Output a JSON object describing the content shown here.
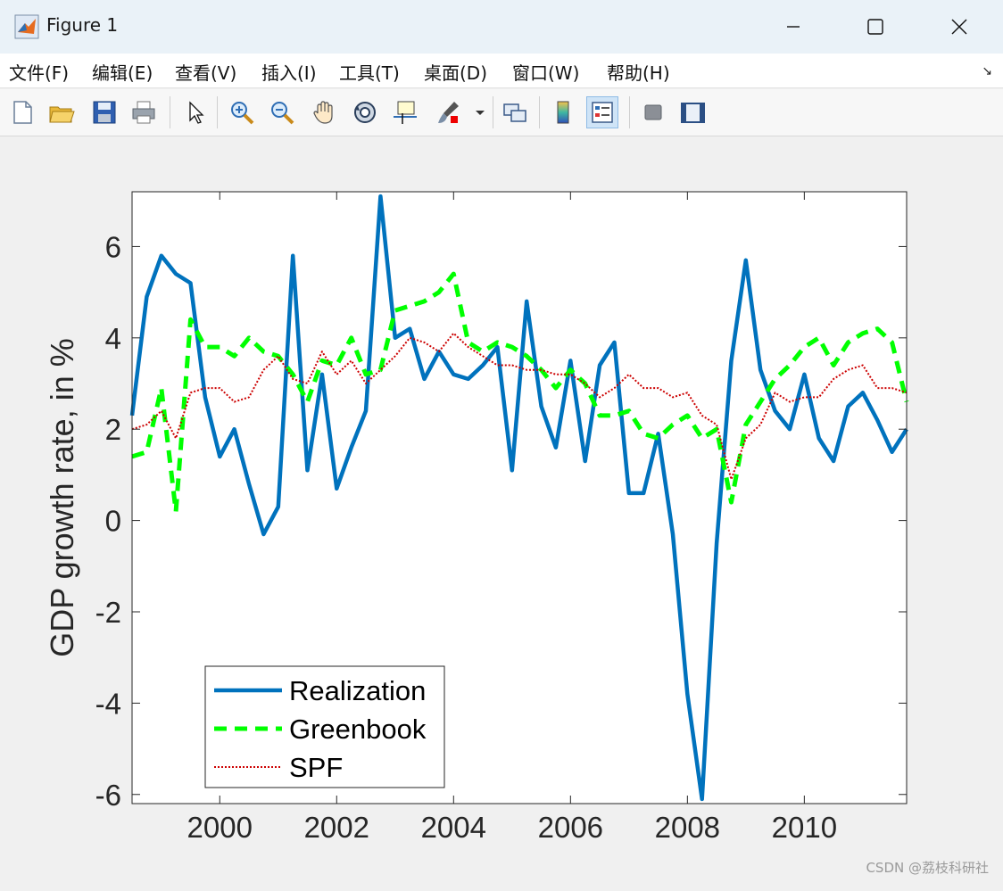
{
  "window": {
    "title": "Figure 1"
  },
  "menu": [
    "文件(F)",
    "编辑(E)",
    "查看(V)",
    "插入(I)",
    "工具(T)",
    "桌面(D)",
    "窗口(W)",
    "帮助(H)"
  ],
  "toolbar": [
    "new-figure-icon",
    "open-file-icon",
    "save-icon",
    "print-icon",
    "select-pointer-icon",
    "zoom-in-icon",
    "zoom-out-icon",
    "pan-hand-icon",
    "rotate-3d-icon",
    "data-cursor-icon",
    "brush-icon",
    "brush-dropdown-icon",
    "link-plot-icon",
    "colorbar-icon",
    "legend-icon",
    "hide-plot-tools-icon",
    "show-plot-tools-icon"
  ],
  "chart_data": {
    "type": "line",
    "xlim": [
      1998.5,
      2011.75
    ],
    "ylim": [
      -6.2,
      7.2
    ],
    "xticks": [
      2000,
      2002,
      2004,
      2006,
      2008,
      2010
    ],
    "yticks": [
      -6,
      -4,
      -2,
      0,
      2,
      4,
      6
    ],
    "ylabel": "GDP growth rate, in %",
    "xlabel": "",
    "grid": false,
    "legend_position": "bottom-left",
    "series": [
      {
        "name": "Realization",
        "color": "#0072bd",
        "style": "solid",
        "x": [
          1998.5,
          1998.75,
          1999,
          1999.25,
          1999.5,
          1999.75,
          2000,
          2000.25,
          2000.5,
          2000.75,
          2001,
          2001.25,
          2001.5,
          2001.75,
          2002,
          2002.25,
          2002.5,
          2002.75,
          2003,
          2003.25,
          2003.5,
          2003.75,
          2004,
          2004.25,
          2004.5,
          2004.75,
          2005,
          2005.25,
          2005.5,
          2005.75,
          2006,
          2006.25,
          2006.5,
          2006.75,
          2007,
          2007.25,
          2007.5,
          2007.75,
          2008,
          2008.25,
          2008.5,
          2008.75,
          2009,
          2009.25,
          2009.5,
          2009.75,
          2010,
          2010.25,
          2010.5,
          2010.75,
          2011,
          2011.25,
          2011.5,
          2011.75
        ],
        "y": [
          2.3,
          4.9,
          5.8,
          5.4,
          5.2,
          2.7,
          1.4,
          2.0,
          0.8,
          -0.3,
          0.3,
          5.8,
          1.1,
          3.2,
          0.7,
          1.6,
          2.4,
          7.1,
          4.0,
          4.2,
          3.1,
          3.7,
          3.2,
          3.1,
          3.4,
          3.8,
          1.1,
          4.8,
          2.5,
          1.6,
          3.5,
          1.3,
          3.4,
          3.9,
          0.6,
          0.6,
          1.9,
          -0.3,
          -3.8,
          -6.1,
          -0.5,
          3.5,
          5.7,
          3.3,
          2.4,
          2.0,
          3.2,
          1.8,
          1.3,
          2.5,
          2.8,
          2.2,
          1.5,
          2.0
        ]
      },
      {
        "name": "Greenbook",
        "color": "#00ff00",
        "style": "dashed",
        "x": [
          1998.5,
          1998.75,
          1999,
          1999.25,
          1999.5,
          1999.75,
          2000,
          2000.25,
          2000.5,
          2000.75,
          2001,
          2001.25,
          2001.5,
          2001.75,
          2002,
          2002.25,
          2002.5,
          2002.75,
          2003,
          2003.25,
          2003.5,
          2003.75,
          2004,
          2004.25,
          2004.5,
          2004.75,
          2005,
          2005.25,
          2005.5,
          2005.75,
          2006,
          2006.25,
          2006.5,
          2006.75,
          2007,
          2007.25,
          2007.5,
          2007.75,
          2008,
          2008.25,
          2008.5,
          2008.75,
          2009,
          2009.25,
          2009.5,
          2009.75,
          2010,
          2010.25,
          2010.5,
          2010.75,
          2011,
          2011.25,
          2011.5,
          2011.75
        ],
        "y": [
          1.4,
          1.5,
          2.9,
          0.2,
          4.4,
          3.8,
          3.8,
          3.6,
          4.0,
          3.7,
          3.6,
          3.2,
          2.6,
          3.5,
          3.4,
          4.0,
          3.2,
          3.3,
          4.6,
          4.7,
          4.8,
          5.0,
          5.4,
          3.9,
          3.7,
          3.9,
          3.8,
          3.6,
          3.3,
          2.9,
          3.3,
          3.0,
          2.3,
          2.3,
          2.4,
          1.9,
          1.8,
          2.1,
          2.3,
          1.8,
          2.0,
          0.4,
          2.1,
          2.6,
          3.1,
          3.4,
          3.8,
          4.0,
          3.4,
          3.9,
          4.1,
          4.2,
          3.9,
          2.6
        ]
      },
      {
        "name": "SPF",
        "color": "#cc0000",
        "style": "dotted",
        "x": [
          1998.5,
          1998.75,
          1999,
          1999.25,
          1999.5,
          1999.75,
          2000,
          2000.25,
          2000.5,
          2000.75,
          2001,
          2001.25,
          2001.5,
          2001.75,
          2002,
          2002.25,
          2002.5,
          2002.75,
          2003,
          2003.25,
          2003.5,
          2003.75,
          2004,
          2004.25,
          2004.5,
          2004.75,
          2005,
          2005.25,
          2005.5,
          2005.75,
          2006,
          2006.25,
          2006.5,
          2006.75,
          2007,
          2007.25,
          2007.5,
          2007.75,
          2008,
          2008.25,
          2008.5,
          2008.75,
          2009,
          2009.25,
          2009.5,
          2009.75,
          2010,
          2010.25,
          2010.5,
          2010.75,
          2011,
          2011.25,
          2011.5,
          2011.75
        ],
        "y": [
          2.0,
          2.1,
          2.4,
          1.8,
          2.8,
          2.9,
          2.9,
          2.6,
          2.7,
          3.3,
          3.6,
          3.1,
          3.0,
          3.7,
          3.2,
          3.5,
          3.0,
          3.3,
          3.6,
          4.0,
          3.9,
          3.7,
          4.1,
          3.8,
          3.6,
          3.4,
          3.4,
          3.3,
          3.3,
          3.2,
          3.2,
          3.0,
          2.7,
          2.9,
          3.2,
          2.9,
          2.9,
          2.7,
          2.8,
          2.3,
          2.1,
          0.9,
          1.8,
          2.1,
          2.8,
          2.6,
          2.7,
          2.7,
          3.1,
          3.3,
          3.4,
          2.9,
          2.9,
          2.8
        ]
      }
    ]
  },
  "watermark": "CSDN @荔枝科研社"
}
